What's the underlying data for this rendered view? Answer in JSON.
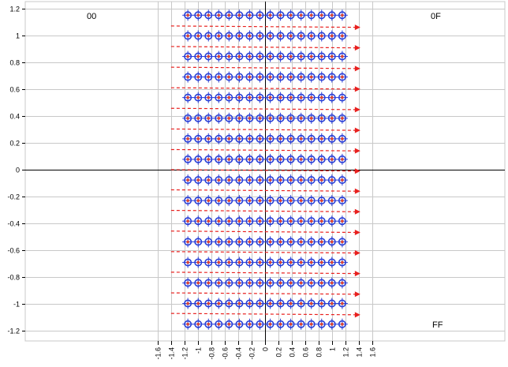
{
  "chart_data": {
    "type": "scatter",
    "title": "",
    "xlabel": "",
    "ylabel": "",
    "xlim": [
      -1.8,
      1.8
    ],
    "ylim": [
      -1.25,
      1.25
    ],
    "grid": true,
    "x_ticks": [
      -1.6,
      -1.4,
      -1.2,
      -1,
      -0.8,
      -0.6,
      -0.4,
      -0.2,
      0,
      0.2,
      0.4,
      0.6,
      0.8,
      1,
      1.2,
      1.4,
      1.6
    ],
    "x_tick_labels": [
      "-1.6",
      "-1.4",
      "-1.2",
      "-1",
      "-0.8",
      "-0.6",
      "-0.4",
      "-0.2",
      "0",
      "0.2",
      "0.4",
      "0.6",
      "0.8",
      "1",
      "1.2",
      "1.4",
      "1.6"
    ],
    "y_ticks": [
      1.2,
      1,
      0.8,
      0.6,
      0.4,
      0.2,
      0,
      -0.2,
      -0.4,
      -0.6,
      -0.8,
      -1,
      -1.2
    ],
    "y_tick_labels": [
      "1.2",
      "1",
      "0.8",
      "0.6",
      "0.4",
      "0.2",
      "0",
      "-0.2",
      "-0.4",
      "-0.6",
      "-0.8",
      "-1",
      "-1.2"
    ],
    "point_x": [
      -1.15,
      -0.996,
      -0.843,
      -0.69,
      -0.537,
      -0.383,
      -0.23,
      -0.077,
      0.077,
      0.23,
      0.383,
      0.537,
      0.69,
      0.843,
      0.996,
      1.15
    ],
    "point_y": [
      1.15,
      0.996,
      0.843,
      0.69,
      0.537,
      0.383,
      0.23,
      0.077,
      -0.077,
      -0.23,
      -0.383,
      -0.537,
      -0.69,
      -0.843,
      -0.996,
      -1.15
    ],
    "arrows": [
      {
        "y_start": 1.07,
        "y_end": 1.06
      },
      {
        "y_start": 0.917,
        "y_end": 0.907
      },
      {
        "y_start": 0.763,
        "y_end": 0.753
      },
      {
        "y_start": 0.61,
        "y_end": 0.6
      },
      {
        "y_start": 0.457,
        "y_end": 0.447
      },
      {
        "y_start": 0.303,
        "y_end": 0.293
      },
      {
        "y_start": 0.15,
        "y_end": 0.14
      },
      {
        "y_start": 0.0,
        "y_end": -0.01
      },
      {
        "y_start": -0.15,
        "y_end": -0.16
      },
      {
        "y_start": -0.303,
        "y_end": -0.313
      },
      {
        "y_start": -0.457,
        "y_end": -0.467
      },
      {
        "y_start": -0.61,
        "y_end": -0.62
      },
      {
        "y_start": -0.763,
        "y_end": -0.773
      },
      {
        "y_start": -0.917,
        "y_end": -0.927
      },
      {
        "y_start": -1.07,
        "y_end": -1.08
      }
    ],
    "arrow_x_start": -1.4,
    "arrow_x_end": 1.42,
    "annotations": {
      "first": "00",
      "row_end": "0F",
      "last": "FF"
    },
    "colors": {
      "marker_outer": "#2a3fd6",
      "marker_inner": "#e0442e",
      "arrow": "#e8201e",
      "grid": "#c8c8c8",
      "axis": "#000000"
    }
  }
}
